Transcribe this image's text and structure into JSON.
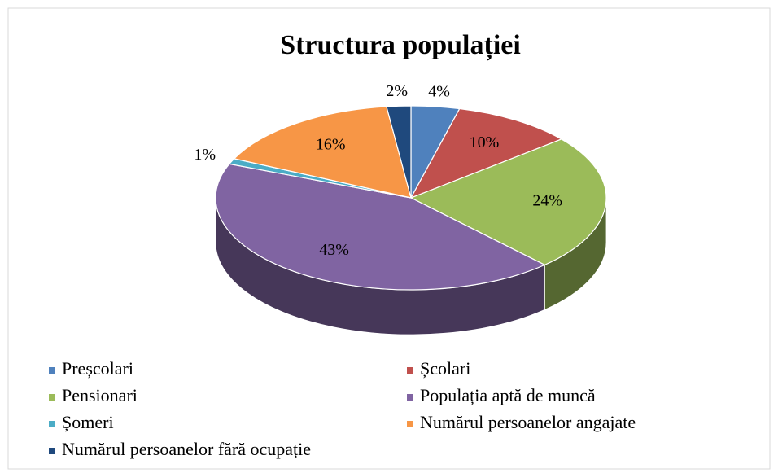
{
  "chart_data": {
    "type": "pie",
    "title": "Structura populației",
    "categories": [
      "Preșcolari",
      "Școlari",
      "Pensionari",
      "Populația aptă de muncă",
      "Șomeri",
      "Numărul persoanelor angajate",
      "Numărul persoanelor fără ocupație"
    ],
    "values": [
      4,
      10,
      24,
      43,
      1,
      16,
      2
    ],
    "value_labels": [
      "4%",
      "10%",
      "24%",
      "43%",
      "1%",
      "16%",
      "2%"
    ],
    "colors": [
      "#4f81bd",
      "#c0504d",
      "#9bbb59",
      "#8064a2",
      "#4bacc6",
      "#f79646",
      "#1f497d"
    ]
  }
}
